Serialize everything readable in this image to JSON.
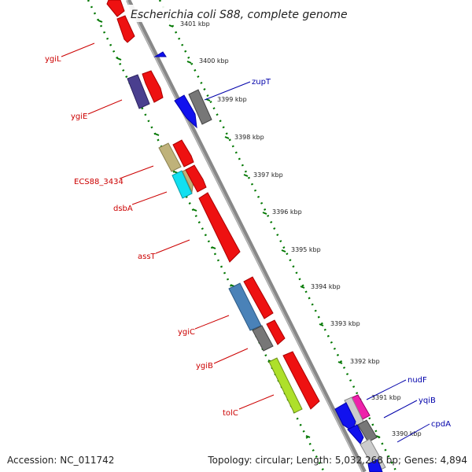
{
  "title": "Escherichia coli S88, complete genome",
  "footer": {
    "accession": "Accession: NC_011742",
    "summary": "Topology: circular; Length: 5,032,268 bp; Genes: 4,894"
  },
  "colors": {
    "forward_label": "#cc0000",
    "reverse_label": "#0000aa",
    "tick": "#007700",
    "backbone": "#888888"
  },
  "kbp_labels": [
    "3401 kbp",
    "3400 kbp",
    "3399 kbp",
    "3398 kbp",
    "3397 kbp",
    "3396 kbp",
    "3395 kbp",
    "3394 kbp",
    "3393 kbp",
    "3392 kbp",
    "3391 kbp",
    "3390 kbp"
  ],
  "gene_labels": {
    "forward": [
      "ygiL",
      "ygiE",
      "ECS88_3434",
      "dsbA",
      "assT",
      "ygiC",
      "ygiB",
      "tolC"
    ],
    "reverse": [
      "zupT",
      "nudF",
      "yqiB",
      "cpdA"
    ]
  }
}
